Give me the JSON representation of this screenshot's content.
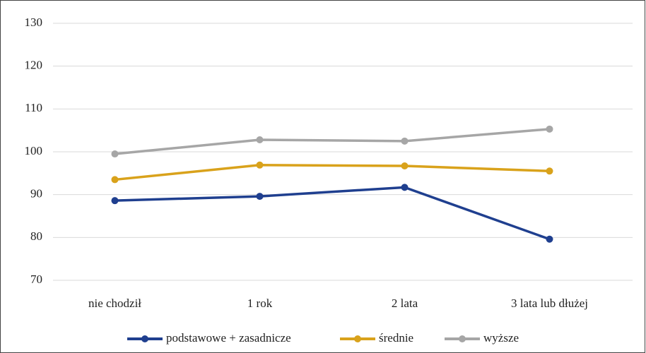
{
  "chart_data": {
    "type": "line",
    "categories": [
      "nie chodził",
      "1 rok",
      "2 lata",
      "3 lata lub dłużej"
    ],
    "series": [
      {
        "name": "podstawowe + zasadnicze",
        "color": "#1f3f8f",
        "values": [
          88.6,
          89.6,
          91.7,
          79.6
        ]
      },
      {
        "name": "średnie",
        "color": "#d9a21b",
        "values": [
          93.5,
          96.9,
          96.7,
          95.5
        ]
      },
      {
        "name": "wyższe",
        "color": "#a6a6a6",
        "values": [
          99.5,
          102.8,
          102.5,
          105.3
        ]
      }
    ],
    "ylim": [
      70,
      130
    ],
    "yticks": [
      70,
      80,
      90,
      100,
      110,
      120,
      130
    ],
    "grid": true,
    "legend": "bottom"
  }
}
